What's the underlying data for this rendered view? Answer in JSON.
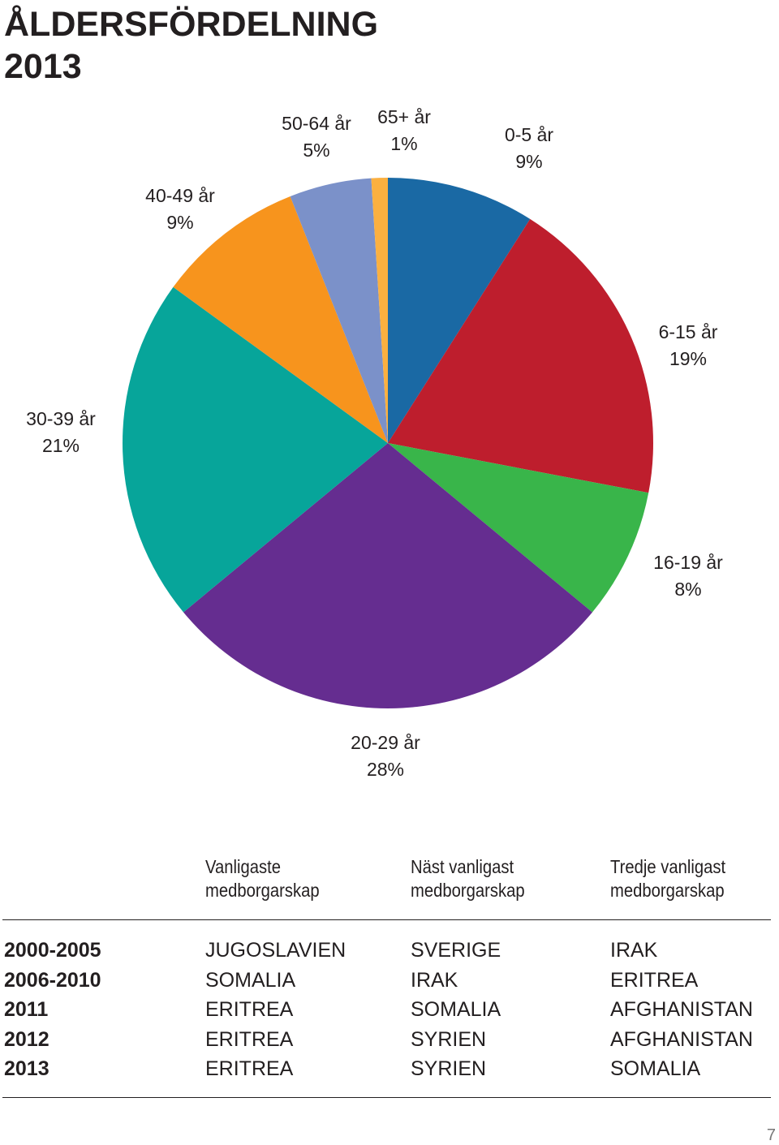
{
  "chart_data": {
    "type": "pie",
    "title": "ÅLDERSFÖRDELNING 2013",
    "categories": [
      "0-5 år",
      "6-15 år",
      "16-19 år",
      "20-29 år",
      "30-39 år",
      "40-49 år",
      "50-64 år",
      "65+ år"
    ],
    "values": [
      9,
      19,
      8,
      28,
      21,
      9,
      5,
      1
    ],
    "value_labels": [
      "9%",
      "19%",
      "8%",
      "28%",
      "21%",
      "9%",
      "5%",
      "1%"
    ],
    "colors": [
      "#1a69a4",
      "#be1e2d",
      "#39b54a",
      "#652d90",
      "#07a59a",
      "#f7941d",
      "#7b91c9",
      "#fbb040"
    ]
  },
  "table": {
    "headers": [
      [
        "Vanligaste",
        "medborgarskap"
      ],
      [
        "Näst vanligast",
        "medborgarskap"
      ],
      [
        "Tredje vanligast",
        "medborgarskap"
      ]
    ],
    "rows": [
      [
        "2000-2005",
        "JUGOSLAVIEN",
        "SVERIGE",
        "IRAK"
      ],
      [
        "2006-2010",
        "SOMALIA",
        "IRAK",
        "ERITREA"
      ],
      [
        "2011",
        "ERITREA",
        "SOMALIA",
        "AFGHANISTAN"
      ],
      [
        "2012",
        "ERITREA",
        "SYRIEN",
        "AFGHANISTAN"
      ],
      [
        "2013",
        "ERITREA",
        "SYRIEN",
        "SOMALIA"
      ]
    ]
  },
  "page_number": "7"
}
